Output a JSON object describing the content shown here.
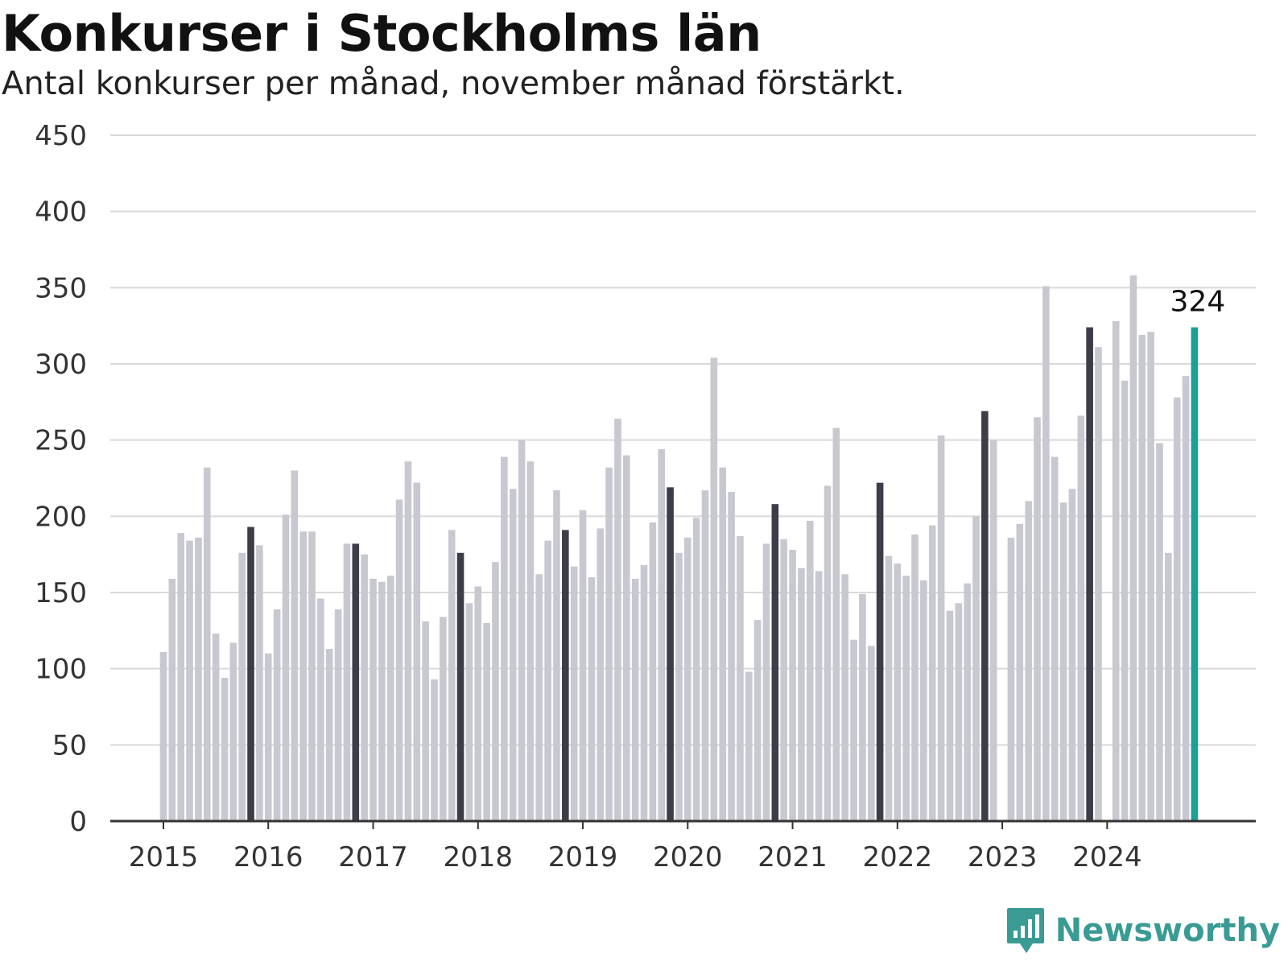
{
  "chart_data": {
    "type": "bar",
    "title": "Konkurser i Stockholms län",
    "subtitle": "Antal konkurser per månad, november månad förstärkt.",
    "xlabel": "",
    "ylabel": "",
    "ylim": [
      0,
      450
    ],
    "yticks": [
      "0",
      "50",
      "100",
      "150",
      "200",
      "250",
      "300",
      "350",
      "400",
      "450"
    ],
    "year_labels": [
      "2015",
      "2016",
      "2017",
      "2018",
      "2019",
      "2020",
      "2021",
      "2022",
      "2023",
      "2024"
    ],
    "start": "2015-01",
    "values": [
      111,
      159,
      189,
      184,
      186,
      232,
      123,
      94,
      117,
      176,
      193,
      181,
      110,
      139,
      201,
      230,
      190,
      190,
      146,
      113,
      139,
      182,
      182,
      175,
      159,
      157,
      161,
      211,
      236,
      222,
      131,
      93,
      134,
      191,
      176,
      143,
      154,
      130,
      170,
      239,
      218,
      250,
      236,
      162,
      184,
      217,
      191,
      167,
      204,
      160,
      192,
      232,
      264,
      240,
      159,
      168,
      196,
      244,
      219,
      176,
      186,
      199,
      217,
      304,
      232,
      216,
      187,
      98,
      132,
      182,
      208,
      185,
      178,
      166,
      197,
      164,
      220,
      258,
      162,
      119,
      149,
      115,
      222,
      174,
      169,
      161,
      188,
      158,
      194,
      253,
      138,
      143,
      156,
      200,
      269,
      250,
      0,
      186,
      195,
      210,
      265,
      351,
      239,
      209,
      218,
      266,
      324,
      311,
      0,
      328,
      289,
      358,
      319,
      321,
      248,
      176,
      278,
      292,
      324
    ],
    "highlight_month": "november",
    "highlight_label": "324",
    "grid": true,
    "legend": "none",
    "colors": {
      "normal": "#c8c8d0",
      "november": "#3d3d4a",
      "latest": "#1aa195",
      "grid": "#d9d9d9",
      "axis": "#333333"
    }
  },
  "brand": {
    "name": "Newsworthy",
    "logo_icon": "bar-chart-speech-bubble-icon",
    "color": "#3a9b94"
  }
}
